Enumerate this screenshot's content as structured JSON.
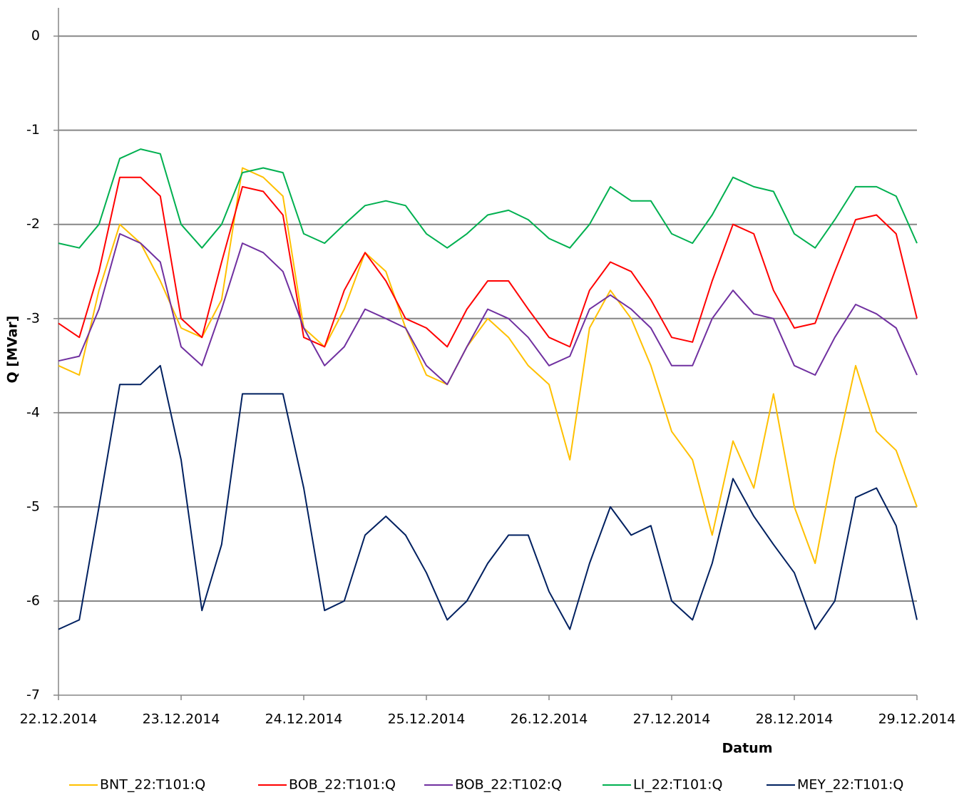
{
  "chart_data": {
    "type": "line",
    "x_label": "Datum",
    "y_label": "Q [MVar]",
    "x": [
      0,
      0.17,
      0.33,
      0.5,
      0.67,
      0.83,
      1,
      1.17,
      1.33,
      1.5,
      1.67,
      1.83,
      2,
      2.17,
      2.33,
      2.5,
      2.67,
      2.83,
      3,
      3.17,
      3.33,
      3.5,
      3.67,
      3.83,
      4,
      4.17,
      4.33,
      4.5,
      4.67,
      4.83,
      5,
      5.17,
      5.33,
      5.5,
      5.67,
      5.83,
      6,
      6.17,
      6.33,
      6.5,
      6.67,
      6.83,
      7
    ],
    "xlim": [
      0,
      7
    ],
    "xticks": [
      {
        "value": 0,
        "label": "22.12.2014"
      },
      {
        "value": 1,
        "label": "23.12.2014"
      },
      {
        "value": 2,
        "label": "24.12.2014"
      },
      {
        "value": 3,
        "label": "25.12.2014"
      },
      {
        "value": 4,
        "label": "26.12.2014"
      },
      {
        "value": 5,
        "label": "27.12.2014"
      },
      {
        "value": 6,
        "label": "28.12.2014"
      },
      {
        "value": 7,
        "label": "29.12.2014"
      }
    ],
    "ylim": [
      -7,
      0.3
    ],
    "yticks": [
      -7,
      -6,
      -5,
      -4,
      -3,
      -2,
      -1,
      0
    ],
    "grid": true,
    "legend": "bottom",
    "series": [
      {
        "name": "BNT_22:T101:Q",
        "color": "#ffc000",
        "values": [
          -3.5,
          -3.6,
          -2.7,
          -2.0,
          -2.2,
          -2.6,
          -3.1,
          -3.2,
          -2.8,
          -1.4,
          -1.5,
          -1.7,
          -3.1,
          -3.3,
          -2.9,
          -2.3,
          -2.5,
          -3.1,
          -3.6,
          -3.7,
          -3.3,
          -3.0,
          -3.2,
          -3.5,
          -3.7,
          -4.5,
          -3.1,
          -2.7,
          -3.0,
          -3.5,
          -4.2,
          -4.5,
          -5.3,
          -4.3,
          -4.8,
          -3.8,
          -5.0,
          -5.6,
          -4.5,
          -3.5,
          -4.2,
          -4.4,
          -5.0
        ]
      },
      {
        "name": "BOB_22:T101:Q",
        "color": "#ff0000",
        "values": [
          -3.05,
          -3.2,
          -2.5,
          -1.5,
          -1.5,
          -1.7,
          -3.0,
          -3.2,
          -2.4,
          -1.6,
          -1.65,
          -1.9,
          -3.2,
          -3.3,
          -2.7,
          -2.3,
          -2.6,
          -3.0,
          -3.1,
          -3.3,
          -2.9,
          -2.6,
          -2.6,
          -2.9,
          -3.2,
          -3.3,
          -2.7,
          -2.4,
          -2.5,
          -2.8,
          -3.2,
          -3.25,
          -2.6,
          -2.0,
          -2.1,
          -2.7,
          -3.1,
          -3.05,
          -2.5,
          -1.95,
          -1.9,
          -2.1,
          -3.0
        ]
      },
      {
        "name": "BOB_22:T102:Q",
        "color": "#7030a0",
        "values": [
          -3.45,
          -3.4,
          -2.9,
          -2.1,
          -2.2,
          -2.4,
          -3.3,
          -3.5,
          -2.9,
          -2.2,
          -2.3,
          -2.5,
          -3.1,
          -3.5,
          -3.3,
          -2.9,
          -3.0,
          -3.1,
          -3.5,
          -3.7,
          -3.3,
          -2.9,
          -3.0,
          -3.2,
          -3.5,
          -3.4,
          -2.9,
          -2.75,
          -2.9,
          -3.1,
          -3.5,
          -3.5,
          -3.0,
          -2.7,
          -2.95,
          -3.0,
          -3.5,
          -3.6,
          -3.2,
          -2.85,
          -2.95,
          -3.1,
          -3.6
        ]
      },
      {
        "name": "LI_22:T101:Q",
        "color": "#00b050",
        "values": [
          -2.2,
          -2.25,
          -2.0,
          -1.3,
          -1.2,
          -1.25,
          -2.0,
          -2.25,
          -2.0,
          -1.45,
          -1.4,
          -1.45,
          -2.1,
          -2.2,
          -2.0,
          -1.8,
          -1.75,
          -1.8,
          -2.1,
          -2.25,
          -2.1,
          -1.9,
          -1.85,
          -1.95,
          -2.15,
          -2.25,
          -2.0,
          -1.6,
          -1.75,
          -1.75,
          -2.1,
          -2.2,
          -1.9,
          -1.5,
          -1.6,
          -1.65,
          -2.1,
          -2.25,
          -1.95,
          -1.6,
          -1.6,
          -1.7,
          -2.2
        ]
      },
      {
        "name": "MEY_22:T101:Q",
        "color": "#002060",
        "values": [
          -6.3,
          -6.2,
          -5.0,
          -3.7,
          -3.7,
          -3.5,
          -4.5,
          -6.1,
          -5.4,
          -3.8,
          -3.8,
          -3.8,
          -4.8,
          -6.1,
          -6.0,
          -5.3,
          -5.1,
          -5.3,
          -5.7,
          -6.2,
          -6.0,
          -5.6,
          -5.3,
          -5.3,
          -5.9,
          -6.3,
          -5.6,
          -5.0,
          -5.3,
          -5.2,
          -6.0,
          -6.2,
          -5.6,
          -4.7,
          -5.1,
          -5.4,
          -5.7,
          -6.3,
          -6.0,
          -4.9,
          -4.8,
          -5.2,
          -6.2
        ]
      }
    ]
  }
}
